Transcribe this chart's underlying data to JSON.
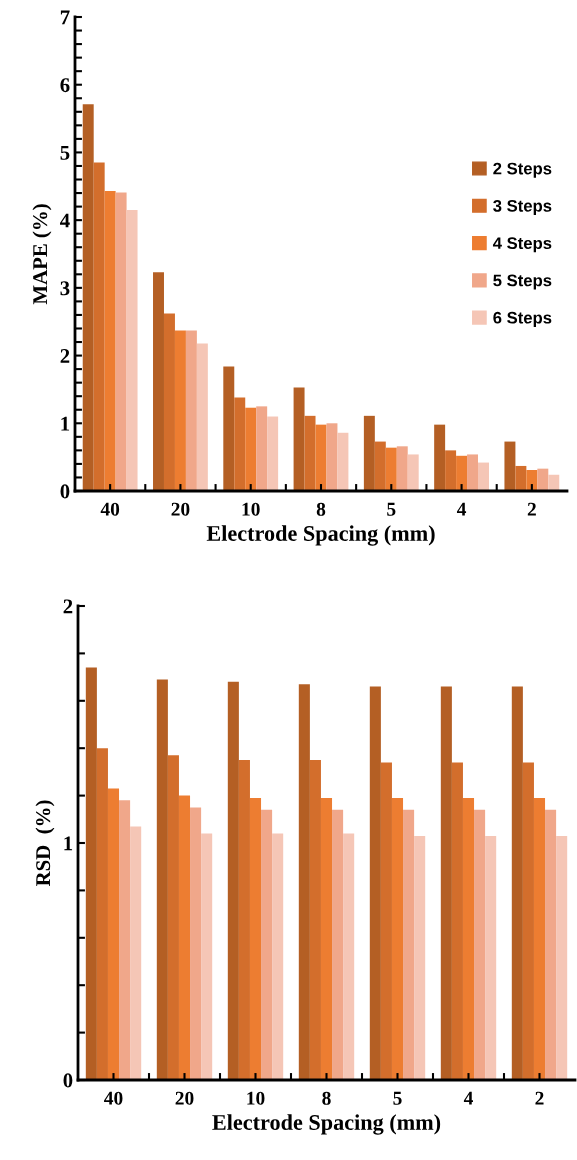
{
  "chart_data": [
    {
      "type": "bar",
      "xlabel": "Electrode Spacing (mm)",
      "ylabel": "MAPE (%)",
      "categories": [
        "40",
        "20",
        "10",
        "8",
        "5",
        "4",
        "2"
      ],
      "ylim": [
        0,
        7
      ],
      "yticks": [
        0,
        {
          "value": 0.2,
          "label": null
        },
        {
          "value": 0.4,
          "label": null
        },
        {
          "value": 0.6,
          "label": null
        },
        {
          "value": 0.8,
          "label": null
        },
        1,
        {
          "value": 1.2,
          "label": null
        },
        {
          "value": 1.4,
          "label": null
        },
        {
          "value": 1.6,
          "label": null
        },
        {
          "value": 1.8,
          "label": null
        },
        2,
        {
          "value": 2.2,
          "label": null
        },
        {
          "value": 2.4,
          "label": null
        },
        {
          "value": 2.6,
          "label": null
        },
        {
          "value": 2.8,
          "label": null
        },
        3,
        {
          "value": 3.2,
          "label": null
        },
        {
          "value": 3.4,
          "label": null
        },
        {
          "value": 3.6,
          "label": null
        },
        {
          "value": 3.8,
          "label": null
        },
        4,
        {
          "value": 4.2,
          "label": null
        },
        {
          "value": 4.4,
          "label": null
        },
        {
          "value": 4.6,
          "label": null
        },
        {
          "value": 4.8,
          "label": null
        },
        5,
        {
          "value": 5.2,
          "label": null
        },
        {
          "value": 5.4,
          "label": null
        },
        {
          "value": 5.6,
          "label": null
        },
        {
          "value": 5.8,
          "label": null
        },
        6,
        {
          "value": 6.2,
          "label": null
        },
        {
          "value": 6.4,
          "label": null
        },
        {
          "value": 6.6,
          "label": null
        },
        {
          "value": 6.8,
          "label": null
        },
        7
      ],
      "legend": "right",
      "grid": false,
      "series": [
        {
          "name": "2 Steps",
          "color": "#b45f24",
          "values": [
            5.71,
            3.23,
            1.84,
            1.53,
            1.11,
            0.98,
            0.73
          ]
        },
        {
          "name": "3 Steps",
          "color": "#d36e2c",
          "values": [
            4.85,
            2.62,
            1.38,
            1.11,
            0.73,
            0.6,
            0.37
          ]
        },
        {
          "name": "4 Steps",
          "color": "#ed7d31",
          "values": [
            4.43,
            2.37,
            1.23,
            0.98,
            0.64,
            0.52,
            0.31
          ]
        },
        {
          "name": "5 Steps",
          "color": "#f0a78a",
          "values": [
            4.41,
            2.37,
            1.25,
            1.0,
            0.66,
            0.54,
            0.33
          ]
        },
        {
          "name": "6 Steps",
          "color": "#f5c6b6",
          "values": [
            4.15,
            2.18,
            1.1,
            0.86,
            0.54,
            0.42,
            0.24
          ]
        }
      ]
    },
    {
      "type": "bar",
      "xlabel": "Electrode Spacing (mm)",
      "ylabel": "RSD  (%)",
      "categories": [
        "40",
        "20",
        "10",
        "8",
        "5",
        "4",
        "2"
      ],
      "ylim": [
        0,
        2
      ],
      "yticks": [
        0,
        {
          "value": 0.2,
          "label": null
        },
        {
          "value": 0.4,
          "label": null
        },
        {
          "value": 0.6,
          "label": null
        },
        {
          "value": 0.8,
          "label": null
        },
        1,
        {
          "value": 1.2,
          "label": null
        },
        {
          "value": 1.4,
          "label": null
        },
        {
          "value": 1.6,
          "label": null
        },
        {
          "value": 1.8,
          "label": null
        },
        2
      ],
      "grid": false,
      "series": [
        {
          "color": "#b45f24",
          "values": [
            1.74,
            1.69,
            1.68,
            1.67,
            1.66,
            1.66,
            1.66
          ]
        },
        {
          "color": "#d36e2c",
          "values": [
            1.4,
            1.37,
            1.35,
            1.35,
            1.34,
            1.34,
            1.34
          ]
        },
        {
          "color": "#ed7d31",
          "values": [
            1.23,
            1.2,
            1.19,
            1.19,
            1.19,
            1.19,
            1.19
          ]
        },
        {
          "color": "#f0a78a",
          "values": [
            1.18,
            1.15,
            1.14,
            1.14,
            1.14,
            1.14,
            1.14
          ]
        },
        {
          "color": "#f5c6b6",
          "values": [
            1.07,
            1.04,
            1.04,
            1.04,
            1.03,
            1.03,
            1.03
          ]
        }
      ]
    }
  ]
}
